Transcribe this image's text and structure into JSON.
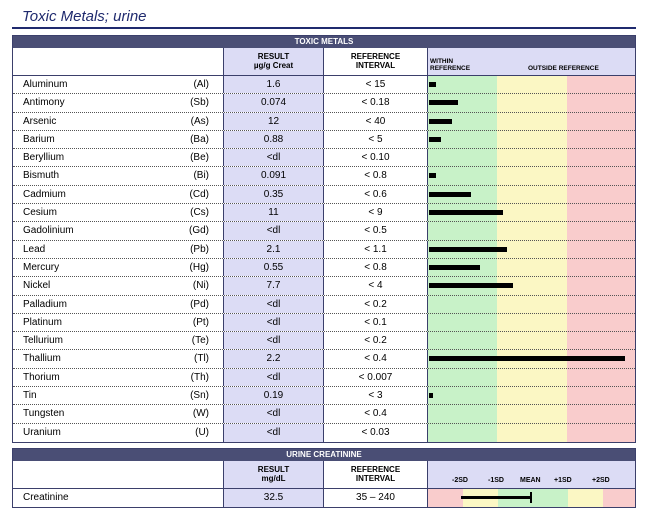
{
  "page_title": "Toxic Metals; urine",
  "toxic": {
    "section_title": "TOXIC METALS",
    "result_header": "RESULT",
    "result_unit": "µg/g Creat",
    "ref_header_1": "REFERENCE",
    "ref_header_2": "INTERVAL",
    "within_label_1": "WITHIN",
    "within_label_2": "REFERENCE",
    "outside_label": "OUTSIDE REFERENCE",
    "rows": [
      {
        "name": "Aluminum",
        "symbol": "(Al)",
        "result": "1.6",
        "ref": "< 15",
        "bar": 0.035
      },
      {
        "name": "Antimony",
        "symbol": "(Sb)",
        "result": "0.074",
        "ref": "< 0.18",
        "bar": 0.14
      },
      {
        "name": "Arsenic",
        "symbol": "(As)",
        "result": "12",
        "ref": "< 40",
        "bar": 0.11
      },
      {
        "name": "Barium",
        "symbol": "(Ba)",
        "result": "0.88",
        "ref": "< 5",
        "bar": 0.06
      },
      {
        "name": "Beryllium",
        "symbol": "(Be)",
        "result": "<dl",
        "ref": "< 0.10",
        "bar": 0
      },
      {
        "name": "Bismuth",
        "symbol": "(Bi)",
        "result": "0.091",
        "ref": "< 0.8",
        "bar": 0.035
      },
      {
        "name": "Cadmium",
        "symbol": "(Cd)",
        "result": "0.35",
        "ref": "< 0.6",
        "bar": 0.2
      },
      {
        "name": "Cesium",
        "symbol": "(Cs)",
        "result": "11",
        "ref": "< 9",
        "bar": 0.355
      },
      {
        "name": "Gadolinium",
        "symbol": "(Gd)",
        "result": "<dl",
        "ref": "< 0.5",
        "bar": 0
      },
      {
        "name": "Lead",
        "symbol": "(Pb)",
        "result": "2.1",
        "ref": "< 1.1",
        "bar": 0.375
      },
      {
        "name": "Mercury",
        "symbol": "(Hg)",
        "result": "0.55",
        "ref": "< 0.8",
        "bar": 0.245
      },
      {
        "name": "Nickel",
        "symbol": "(Ni)",
        "result": "7.7",
        "ref": "< 4",
        "bar": 0.405
      },
      {
        "name": "Palladium",
        "symbol": "(Pd)",
        "result": "<dl",
        "ref": "< 0.2",
        "bar": 0
      },
      {
        "name": "Platinum",
        "symbol": "(Pt)",
        "result": "<dl",
        "ref": "< 0.1",
        "bar": 0
      },
      {
        "name": "Tellurium",
        "symbol": "(Te)",
        "result": "<dl",
        "ref": "< 0.2",
        "bar": 0
      },
      {
        "name": "Thallium",
        "symbol": "(Tl)",
        "result": "2.2",
        "ref": "< 0.4",
        "bar": 0.94
      },
      {
        "name": "Thorium",
        "symbol": "(Th)",
        "result": "<dl",
        "ref": "< 0.007",
        "bar": 0
      },
      {
        "name": "Tin",
        "symbol": "(Sn)",
        "result": "0.19",
        "ref": "< 3",
        "bar": 0.02
      },
      {
        "name": "Tungsten",
        "symbol": "(W)",
        "result": "<dl",
        "ref": "< 0.4",
        "bar": 0
      },
      {
        "name": "Uranium",
        "symbol": "(U)",
        "result": "<dl",
        "ref": "< 0.03",
        "bar": 0
      }
    ]
  },
  "creatinine": {
    "section_title": "URINE CREATININE",
    "result_header": "RESULT",
    "result_unit": "mg/dL",
    "ref_header_1": "REFERENCE",
    "ref_header_2": "INTERVAL",
    "sd_labels": [
      "-2SD",
      "-1SD",
      "MEAN",
      "+1SD",
      "+2SD"
    ],
    "row": {
      "name": "Creatinine",
      "result": "32.5",
      "ref": "35 – 240"
    }
  },
  "colors": {
    "within": "#c8f2c8",
    "outside_yellow": "#fbf7c4",
    "outside_red": "#f9cccc",
    "header": "#4a4e75",
    "result_col": "#dcdcf5"
  }
}
